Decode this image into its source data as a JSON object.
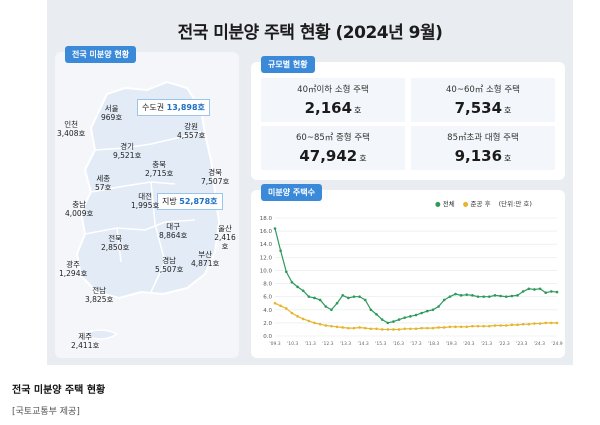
{
  "title": "전국 미분양 주택 현황 (2024년 9월)",
  "map": {
    "tag": "전국 미분양 현황",
    "capital": {
      "label": "수도권",
      "value": "13,898호"
    },
    "local": {
      "label": "지방",
      "value": "52,878호"
    },
    "regions": [
      {
        "name": "서울",
        "value": "969호"
      },
      {
        "name": "인천",
        "value": "3,408호"
      },
      {
        "name": "경기",
        "value": "9,521호"
      },
      {
        "name": "강원",
        "value": "4,557호"
      },
      {
        "name": "충북",
        "value": "2,715호"
      },
      {
        "name": "세종",
        "value": "57호"
      },
      {
        "name": "경북",
        "value": "7,507호"
      },
      {
        "name": "충남",
        "value": "4,009호"
      },
      {
        "name": "대전",
        "value": "1,995호"
      },
      {
        "name": "울산",
        "value": "2,416호"
      },
      {
        "name": "대구",
        "value": "8,864호"
      },
      {
        "name": "전북",
        "value": "2,850호"
      },
      {
        "name": "광주",
        "value": "1,294호"
      },
      {
        "name": "경남",
        "value": "5,507호"
      },
      {
        "name": "부산",
        "value": "4,871호"
      },
      {
        "name": "전남",
        "value": "3,825호"
      },
      {
        "name": "제주",
        "value": "2,411호"
      }
    ]
  },
  "size": {
    "tag": "규모별 현황",
    "cells": [
      {
        "label": "40㎡이하 소형 주택",
        "value": "2,164",
        "unit": "호"
      },
      {
        "label": "40~60㎡ 소형 주택",
        "value": "7,534",
        "unit": "호"
      },
      {
        "label": "60~85㎡ 중형 주택",
        "value": "47,942",
        "unit": "호"
      },
      {
        "label": "85㎡초과 대형 주택",
        "value": "9,136",
        "unit": "호"
      }
    ]
  },
  "colors": {
    "total": "#2e9a5a",
    "completed": "#e5b52e",
    "accent": "#3b8ad9"
  },
  "chart_data": {
    "type": "line",
    "title": "미분양 주택수",
    "unit_note": "(단위:만 호)",
    "legend": [
      "전체",
      "준공 후"
    ],
    "ylim": [
      0,
      18
    ],
    "yticks": [
      "0.0",
      "2.0",
      "4.0",
      "6.0",
      "8.0",
      "10.0",
      "12.0",
      "14.0",
      "16.0",
      "18.0"
    ],
    "x_tick_labels": [
      "'09.3",
      "'10.3",
      "'11.3",
      "'12.3",
      "'13.3",
      "'14.3",
      "'15.3",
      "'16.3",
      "'17.3",
      "'18.3",
      "'19.3",
      "'20.3",
      "'21.3",
      "'22.3",
      "'23.3",
      "'24.3",
      "'24.9"
    ],
    "series": [
      {
        "name": "전체",
        "values": [
          16.4,
          13.0,
          9.8,
          8.2,
          7.5,
          6.9,
          6.0,
          5.8,
          5.5,
          4.5,
          4.0,
          5.0,
          6.2,
          5.8,
          6.0,
          6.0,
          5.5,
          4.0,
          3.3,
          2.5,
          2.0,
          2.2,
          2.5,
          2.8,
          3.0,
          3.2,
          3.5,
          3.8,
          4.0,
          4.5,
          5.5,
          6.0,
          6.4,
          6.2,
          6.3,
          6.2,
          6.0,
          6.0,
          6.0,
          6.2,
          6.1,
          6.0,
          6.1,
          6.2,
          6.8,
          7.2,
          7.1,
          7.2,
          6.6,
          6.8,
          6.7
        ]
      },
      {
        "name": "준공 후",
        "values": [
          5.0,
          4.6,
          4.2,
          3.5,
          3.0,
          2.6,
          2.3,
          2.0,
          1.8,
          1.6,
          1.5,
          1.4,
          1.3,
          1.2,
          1.2,
          1.3,
          1.2,
          1.1,
          1.1,
          1.0,
          1.0,
          1.0,
          1.0,
          1.1,
          1.1,
          1.1,
          1.2,
          1.2,
          1.2,
          1.3,
          1.3,
          1.4,
          1.4,
          1.4,
          1.4,
          1.5,
          1.5,
          1.5,
          1.5,
          1.6,
          1.6,
          1.6,
          1.7,
          1.7,
          1.8,
          1.8,
          1.9,
          1.9,
          2.0,
          2.0,
          2.0
        ]
      }
    ]
  },
  "caption": {
    "title": "전국 미분양 주택 현황",
    "source": "[국토교통부 제공]"
  }
}
